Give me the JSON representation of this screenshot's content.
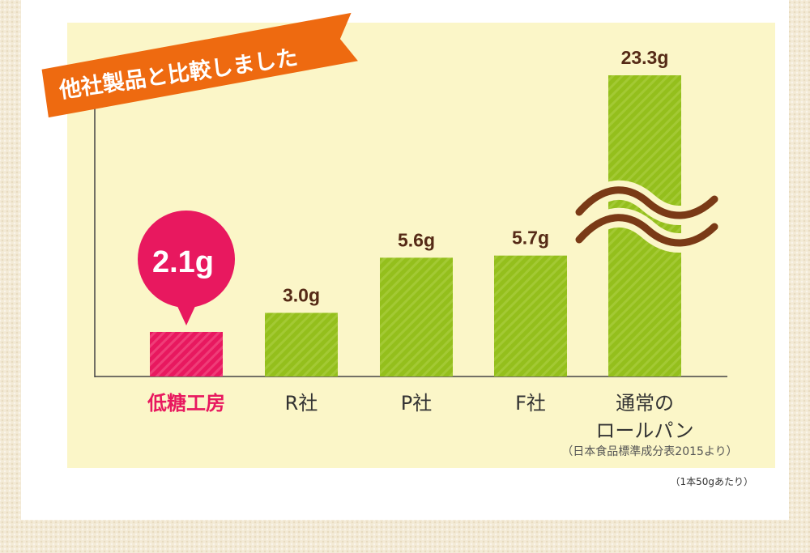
{
  "ribbon_title": "他社製品と比較しました",
  "footnote": "（1本50gあたり）",
  "colors": {
    "pink": "#e8185f",
    "green": "#94bf1c",
    "chart_bg": "#fbf6c8",
    "ribbon": "#ee6a10",
    "wave": "#7a3a16",
    "value_text": "#552a16"
  },
  "chart_data": {
    "type": "bar",
    "title": "他社製品と比較しました",
    "unit": "g",
    "categories": [
      "低糖工房",
      "R社",
      "P社",
      "F社",
      "通常のロールパン"
    ],
    "values": [
      2.1,
      3.0,
      5.6,
      5.7,
      23.3
    ],
    "value_labels": [
      "2.1g",
      "3.0g",
      "5.6g",
      "5.7g",
      "23.3g"
    ],
    "category_lines": [
      [
        "低糖工房"
      ],
      [
        "R社"
      ],
      [
        "P社"
      ],
      [
        "F社"
      ],
      [
        "通常の",
        "ロールパン"
      ]
    ],
    "highlight": "低糖工房",
    "axis_break": true,
    "source_note": "（日本食品標準成分表2015より）",
    "grid": false,
    "legend": "none"
  }
}
